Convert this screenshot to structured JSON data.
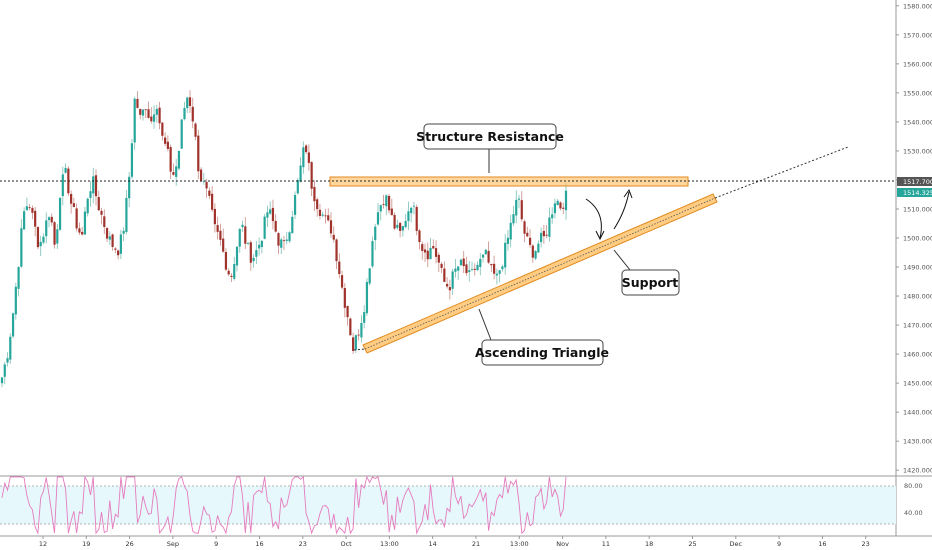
{
  "chart_data": {
    "type": "candlestick",
    "y_ticks": [
      "1580.000",
      "1570.000",
      "1560.000",
      "1550.000",
      "1540.000",
      "1530.000",
      "1520.000",
      "1510.000",
      "1500.000",
      "1490.000",
      "1480.000",
      "1470.000",
      "1460.000",
      "1450.000",
      "1440.000",
      "1430.000",
      "1420.000"
    ],
    "x_ticks": [
      "12",
      "19",
      "26",
      "Sep",
      "9",
      "16",
      "23",
      "Oct",
      "13:00",
      "14",
      "21",
      "13:00",
      "Nov",
      "11",
      "18",
      "25",
      "Dec",
      "9",
      "16",
      "23"
    ],
    "ylim": [
      1418,
      1582
    ],
    "price_label": "1517.700",
    "price_value": 1517.7,
    "last_label": "1514.325",
    "last_value": 1514.3,
    "resistance_value": 1517.7,
    "rsi_ticks": [
      "80.00",
      "40.00"
    ],
    "rsi_band": [
      30,
      80
    ],
    "annotations": {
      "resistance": "Structure Resistance",
      "support": "Support",
      "pattern": "Ascending Triangle"
    },
    "close_path": [
      1452,
      1460,
      1473,
      1490,
      1508,
      1513,
      1505,
      1497,
      1503,
      1510,
      1496,
      1518,
      1522,
      1512,
      1505,
      1500,
      1514,
      1520,
      1512,
      1506,
      1500,
      1497,
      1496,
      1505,
      1523,
      1549,
      1541,
      1546,
      1540,
      1548,
      1535,
      1530,
      1521,
      1526,
      1543,
      1550,
      1540,
      1523,
      1518,
      1512,
      1503,
      1499,
      1492,
      1486,
      1496,
      1505,
      1497,
      1493,
      1496,
      1502,
      1510,
      1505,
      1499,
      1497,
      1504,
      1513,
      1523,
      1533,
      1520,
      1513,
      1509,
      1505,
      1503,
      1493,
      1482,
      1473,
      1462,
      1468,
      1476,
      1490,
      1505,
      1511,
      1515,
      1508,
      1503,
      1501,
      1508,
      1513,
      1504,
      1497,
      1495,
      1497,
      1492,
      1485,
      1483,
      1488,
      1491,
      1489,
      1486,
      1490,
      1492,
      1494,
      1488,
      1486,
      1492,
      1499,
      1508,
      1514,
      1503,
      1497,
      1495,
      1499,
      1500,
      1507,
      1514,
      1511,
      1514
    ],
    "colors": {
      "up": "#26a69a",
      "down": "#a0322c",
      "wick_up": "#7bbfb6",
      "wick_down": "#c98c86",
      "band_fill": "#ffb74d",
      "band_stroke": "#e08a20",
      "rsi_line": "#e57bbf",
      "rsi_bg": "#e6f8fb",
      "price_tag": "#555555",
      "last_tag": "#26a69a"
    }
  }
}
